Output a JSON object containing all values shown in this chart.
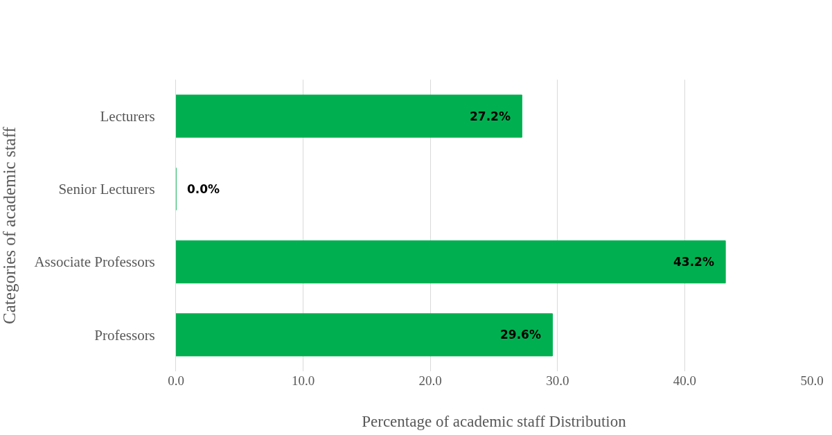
{
  "chart_data": {
    "type": "bar",
    "orientation": "horizontal",
    "xlabel": "Percentage of academic staff Distribution",
    "ylabel": "Categories of academic staff",
    "categories": [
      "Lecturers",
      "Senior Lecturers",
      "Associate Professors",
      "Professors"
    ],
    "values": [
      27.2,
      0.0,
      43.2,
      29.6
    ],
    "value_labels": [
      "27.2%",
      "0.0%",
      "43.2%",
      "29.6%"
    ],
    "color": "#00b050",
    "xlim": [
      0,
      50
    ],
    "xticks": [
      {
        "value": 0,
        "label": "0.0"
      },
      {
        "value": 10,
        "label": "10.0"
      },
      {
        "value": 20,
        "label": "20.0"
      },
      {
        "value": 30,
        "label": "30.0"
      },
      {
        "value": 40,
        "label": "40.0"
      },
      {
        "value": 50,
        "label": "50.0"
      }
    ],
    "grid": "x",
    "legend": false
  }
}
